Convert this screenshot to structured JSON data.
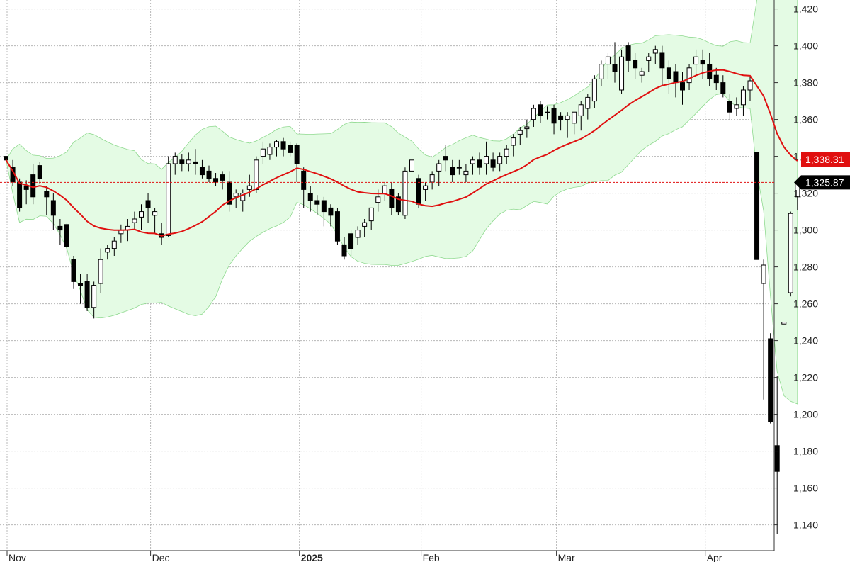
{
  "chart_data": {
    "type": "candlestick",
    "x_labels": [
      "Nov",
      "Dec",
      "2025",
      "Feb",
      "Mar",
      "Apr"
    ],
    "y_ticks": [
      "1,140",
      "1,160",
      "1,180",
      "1,200",
      "1,220",
      "1,240",
      "1,260",
      "1,280",
      "1,300",
      "1,320",
      "1,340",
      "1,360",
      "1,380",
      "1,400",
      "1,420"
    ],
    "ylim": [
      1131,
      1444
    ],
    "grid": true,
    "price_tags": {
      "ma": "1,338.31",
      "last": "1,325.87"
    },
    "last_close": 1325.87,
    "ma_last": 1338.31,
    "colors": {
      "up_body": "#ffffff",
      "down_body": "#000000",
      "ma_line": "#e01010",
      "band_fill": "#e4fbe4",
      "band_edge": "#8fd98f",
      "grid": "#b8b8b8",
      "ma_tag": "#e01010",
      "last_tag": "#000000"
    },
    "candles": [
      [
        1340,
        1342,
        1334,
        1338
      ],
      [
        1334,
        1338,
        1324,
        1326
      ],
      [
        1326,
        1328,
        1310,
        1312
      ],
      [
        1324,
        1327,
        1314,
        1322
      ],
      [
        1330,
        1336,
        1314,
        1318
      ],
      [
        1335,
        1337,
        1325,
        1328
      ],
      [
        1321,
        1324,
        1308,
        1318
      ],
      [
        1316,
        1320,
        1300,
        1308
      ],
      [
        1302,
        1306,
        1292,
        1300
      ],
      [
        1303,
        1304,
        1286,
        1291
      ],
      [
        1284,
        1286,
        1268,
        1272
      ],
      [
        1271,
        1276,
        1260,
        1270
      ],
      [
        1272,
        1276,
        1256,
        1258
      ],
      [
        1258,
        1272,
        1252,
        1270
      ],
      [
        1271,
        1290,
        1266,
        1284
      ],
      [
        1288,
        1292,
        1284,
        1290
      ],
      [
        1290,
        1296,
        1286,
        1294
      ],
      [
        1298,
        1303,
        1293,
        1300
      ],
      [
        1300,
        1306,
        1294,
        1302
      ],
      [
        1304,
        1310,
        1300,
        1306
      ],
      [
        1307,
        1314,
        1300,
        1310
      ],
      [
        1316,
        1320,
        1304,
        1312
      ],
      [
        1308,
        1312,
        1298,
        1310
      ],
      [
        1298,
        1304,
        1292,
        1296
      ],
      [
        1297,
        1340,
        1296,
        1336
      ],
      [
        1336,
        1342,
        1330,
        1340
      ],
      [
        1338,
        1341,
        1332,
        1336
      ],
      [
        1336,
        1342,
        1332,
        1338
      ],
      [
        1337,
        1344,
        1330,
        1336
      ],
      [
        1334,
        1338,
        1328,
        1330
      ],
      [
        1332,
        1335,
        1326,
        1328
      ],
      [
        1328,
        1331,
        1324,
        1326
      ],
      [
        1330,
        1332,
        1322,
        1327
      ],
      [
        1326,
        1332,
        1310,
        1314
      ],
      [
        1318,
        1322,
        1312,
        1320
      ],
      [
        1316,
        1322,
        1310,
        1320
      ],
      [
        1322,
        1330,
        1318,
        1324
      ],
      [
        1322,
        1340,
        1320,
        1338
      ],
      [
        1340,
        1348,
        1336,
        1344
      ],
      [
        1341,
        1347,
        1338,
        1345
      ],
      [
        1345,
        1349,
        1340,
        1348
      ],
      [
        1348,
        1350,
        1340,
        1344
      ],
      [
        1346,
        1348,
        1340,
        1342
      ],
      [
        1346,
        1347,
        1326,
        1336
      ],
      [
        1332,
        1334,
        1312,
        1322
      ],
      [
        1320,
        1324,
        1310,
        1316
      ],
      [
        1316,
        1319,
        1308,
        1314
      ],
      [
        1316,
        1318,
        1302,
        1310
      ],
      [
        1312,
        1314,
        1302,
        1308
      ],
      [
        1310,
        1312,
        1292,
        1294
      ],
      [
        1292,
        1296,
        1284,
        1286
      ],
      [
        1298,
        1300,
        1285,
        1290
      ],
      [
        1296,
        1302,
        1292,
        1300
      ],
      [
        1302,
        1306,
        1296,
        1304
      ],
      [
        1305,
        1312,
        1300,
        1312
      ],
      [
        1315,
        1322,
        1310,
        1318
      ],
      [
        1320,
        1326,
        1316,
        1324
      ],
      [
        1322,
        1326,
        1308,
        1312
      ],
      [
        1318,
        1320,
        1308,
        1310
      ],
      [
        1308,
        1334,
        1306,
        1332
      ],
      [
        1332,
        1342,
        1328,
        1338
      ],
      [
        1328,
        1330,
        1312,
        1314
      ],
      [
        1322,
        1326,
        1316,
        1324
      ],
      [
        1326,
        1332,
        1322,
        1330
      ],
      [
        1332,
        1338,
        1324,
        1336
      ],
      [
        1340,
        1346,
        1332,
        1338
      ],
      [
        1334,
        1338,
        1326,
        1330
      ],
      [
        1334,
        1338,
        1330,
        1334
      ],
      [
        1330,
        1336,
        1326,
        1332
      ],
      [
        1336,
        1340,
        1330,
        1338
      ],
      [
        1338,
        1342,
        1330,
        1334
      ],
      [
        1336,
        1348,
        1330,
        1340
      ],
      [
        1338,
        1342,
        1332,
        1334
      ],
      [
        1336,
        1342,
        1332,
        1340
      ],
      [
        1340,
        1346,
        1336,
        1344
      ],
      [
        1346,
        1352,
        1340,
        1350
      ],
      [
        1352,
        1356,
        1346,
        1354
      ],
      [
        1355,
        1360,
        1350,
        1356
      ],
      [
        1360,
        1368,
        1356,
        1366
      ],
      [
        1368,
        1370,
        1358,
        1362
      ],
      [
        1364,
        1367,
        1360,
        1364
      ],
      [
        1366,
        1368,
        1352,
        1358
      ],
      [
        1362,
        1364,
        1354,
        1360
      ],
      [
        1360,
        1364,
        1350,
        1362
      ],
      [
        1358,
        1364,
        1352,
        1364
      ],
      [
        1362,
        1370,
        1354,
        1368
      ],
      [
        1366,
        1374,
        1360,
        1372
      ],
      [
        1370,
        1384,
        1366,
        1382
      ],
      [
        1382,
        1392,
        1378,
        1390
      ],
      [
        1390,
        1396,
        1382,
        1394
      ],
      [
        1390,
        1402,
        1380,
        1386
      ],
      [
        1376,
        1398,
        1374,
        1394
      ],
      [
        1400,
        1402,
        1386,
        1392
      ],
      [
        1392,
        1396,
        1382,
        1388
      ],
      [
        1384,
        1388,
        1380,
        1386
      ],
      [
        1392,
        1396,
        1386,
        1394
      ],
      [
        1396,
        1400,
        1390,
        1398
      ],
      [
        1396,
        1400,
        1378,
        1388
      ],
      [
        1388,
        1392,
        1374,
        1382
      ],
      [
        1386,
        1390,
        1372,
        1380
      ],
      [
        1380,
        1386,
        1368,
        1376
      ],
      [
        1380,
        1390,
        1376,
        1388
      ],
      [
        1390,
        1398,
        1384,
        1394
      ],
      [
        1392,
        1398,
        1382,
        1390
      ],
      [
        1390,
        1396,
        1378,
        1382
      ],
      [
        1384,
        1388,
        1376,
        1380
      ],
      [
        1380,
        1384,
        1372,
        1374
      ],
      [
        1370,
        1374,
        1360,
        1364
      ],
      [
        1366,
        1372,
        1362,
        1368
      ],
      [
        1368,
        1378,
        1362,
        1376
      ],
      [
        1376,
        1384,
        1370,
        1381
      ],
      [
        1342,
        1342,
        1284,
        1284
      ],
      [
        1271,
        1284,
        1208,
        1281
      ],
      [
        1241,
        1244,
        1195,
        1196
      ],
      [
        1183,
        1221,
        1135,
        1169
      ],
      [
        1249,
        1250,
        1249,
        1250
      ],
      [
        1266,
        1310,
        1264,
        1309
      ],
      [
        1318,
        1328,
        1311,
        1325.87
      ]
    ]
  }
}
